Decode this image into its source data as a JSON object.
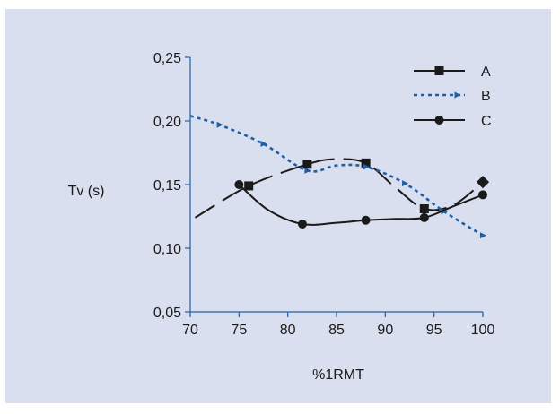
{
  "chart_data": {
    "type": "line",
    "title": "",
    "xlabel": "%1RMT",
    "ylabel": "Tv (s)",
    "xlim": [
      70,
      100
    ],
    "ylim": [
      0.05,
      0.25
    ],
    "x_ticks": [
      70,
      75,
      80,
      85,
      90,
      95,
      100
    ],
    "x_tick_labels": [
      "70",
      "75",
      "80",
      "85",
      "90",
      "95",
      "100"
    ],
    "y_ticks": [
      0.05,
      0.1,
      0.15,
      0.2,
      0.25
    ],
    "y_tick_labels": [
      "0,05",
      "0,10",
      "0,15",
      "0,20",
      "0,25"
    ],
    "grid": false,
    "legend_position": "top-right",
    "series": [
      {
        "name": "A",
        "line_style": "long-dash",
        "marker": "square",
        "color": "#1a1a1a",
        "x": [
          76,
          82,
          88,
          94,
          100
        ],
        "y": [
          0.149,
          0.166,
          0.167,
          0.131,
          0.152
        ],
        "curve_x": [
          70.5,
          76,
          82,
          85,
          88,
          91,
          94,
          97,
          100
        ],
        "curve_y": [
          0.124,
          0.149,
          0.166,
          0.17,
          0.167,
          0.148,
          0.131,
          0.134,
          0.152
        ]
      },
      {
        "name": "B",
        "line_style": "dotted",
        "marker": "triangle-right",
        "color": "#1f5fa8",
        "x": [
          73,
          77.5,
          82,
          88,
          92,
          96,
          100
        ],
        "y": [
          0.197,
          0.182,
          0.161,
          0.164,
          0.151,
          0.129,
          0.11
        ],
        "curve_x": [
          70,
          73,
          77.5,
          82,
          85,
          88,
          92,
          96,
          100
        ],
        "curve_y": [
          0.204,
          0.197,
          0.182,
          0.161,
          0.165,
          0.164,
          0.151,
          0.129,
          0.11
        ]
      },
      {
        "name": "C",
        "line_style": "solid",
        "marker": "circle",
        "color": "#1a1a1a",
        "x": [
          75,
          81.5,
          88,
          94,
          100
        ],
        "y": [
          0.15,
          0.119,
          0.122,
          0.124,
          0.142
        ],
        "curve_x": [
          75,
          78,
          81.5,
          85,
          88,
          91,
          94,
          97,
          100
        ],
        "curve_y": [
          0.15,
          0.13,
          0.119,
          0.12,
          0.122,
          0.123,
          0.124,
          0.133,
          0.142
        ]
      }
    ]
  }
}
